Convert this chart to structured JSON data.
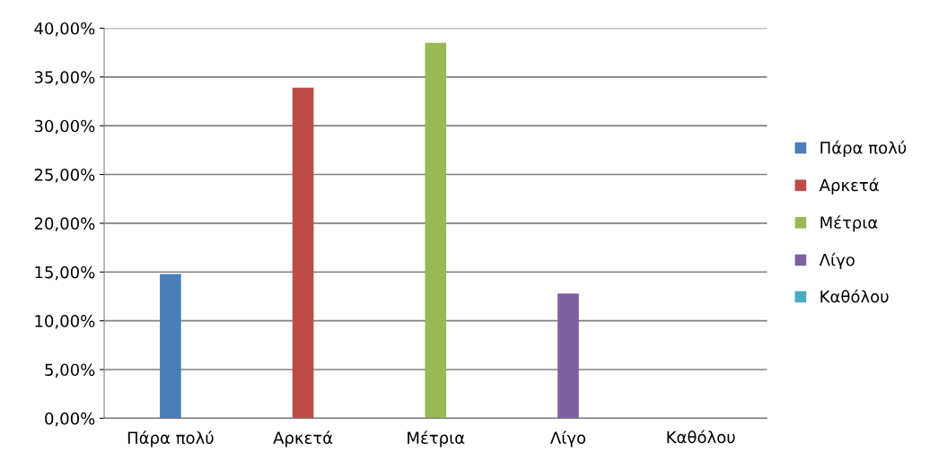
{
  "chart_data": {
    "type": "bar",
    "categories": [
      "Πάρα πολύ",
      "Αρκετά",
      "Μέτρια",
      "Λίγο",
      "Καθόλου"
    ],
    "series": [
      {
        "name": "Πάρα πολύ",
        "color": "#4a7ebb",
        "values": [
          14.8,
          null,
          null,
          null,
          null
        ]
      },
      {
        "name": "Αρκετά",
        "color": "#be4b48",
        "values": [
          null,
          33.9,
          null,
          null,
          null
        ]
      },
      {
        "name": "Μέτρια",
        "color": "#98b954",
        "values": [
          null,
          null,
          38.5,
          null,
          null
        ]
      },
      {
        "name": "Λίγο",
        "color": "#7d60a0",
        "values": [
          null,
          null,
          null,
          12.8,
          null
        ]
      },
      {
        "name": "Καθόλου",
        "color": "#46aac5",
        "values": [
          null,
          null,
          null,
          null,
          0
        ]
      }
    ],
    "ylim": [
      0,
      40
    ],
    "yticks": [
      {
        "value": 0,
        "label": "0,00%"
      },
      {
        "value": 5,
        "label": "5,00%"
      },
      {
        "value": 10,
        "label": "10,00%"
      },
      {
        "value": 15,
        "label": "15,00%"
      },
      {
        "value": 20,
        "label": "20,00%"
      },
      {
        "value": 25,
        "label": "25,00%"
      },
      {
        "value": 30,
        "label": "30,00%"
      },
      {
        "value": 35,
        "label": "35,00%"
      },
      {
        "value": 40,
        "label": "40,00%"
      }
    ],
    "grid": "y",
    "legend": "right"
  }
}
